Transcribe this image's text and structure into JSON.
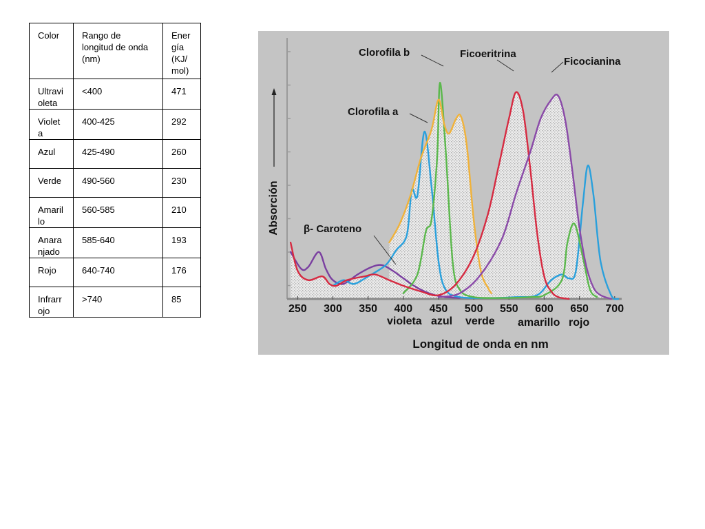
{
  "table": {
    "headers": [
      "Color",
      "Rango de\nlongitud de onda\n(nm)",
      "Ener\ngía\n(KJ/\nmol)"
    ],
    "rows": [
      [
        "Ultravi\noleta",
        "<400",
        "471"
      ],
      [
        "Violet\na",
        "400-425",
        "292"
      ],
      [
        "Azul",
        "425-490",
        "260"
      ],
      [
        "Verde",
        "490-560",
        "230"
      ],
      [
        "Amaril\nlo",
        "560-585",
        "210"
      ],
      [
        "Anara\nnjado",
        "585-640",
        "193"
      ],
      [
        "Rojo",
        "640-740",
        "176"
      ],
      [
        "Infrarr\nojo",
        ">740",
        "85"
      ]
    ]
  },
  "chart_data": {
    "type": "line",
    "title": "",
    "xlabel": "Longitud de onda en nm",
    "ylabel": "Absorción",
    "xlim": [
      235,
      710
    ],
    "ylim": [
      0,
      100
    ],
    "x_ticks": [
      "250",
      "300",
      "350",
      "400",
      "450",
      "500",
      "550",
      "600",
      "650",
      "700"
    ],
    "color_band_labels": [
      "violeta",
      "azul",
      "verde",
      "amarillo",
      "rojo"
    ],
    "grid": false,
    "series": [
      {
        "name": "β- Caroteno",
        "color": "#7a3fa0",
        "points": [
          [
            240,
            25
          ],
          [
            255,
            16
          ],
          [
            265,
            17
          ],
          [
            280,
            25
          ],
          [
            290,
            16
          ],
          [
            300,
            10
          ],
          [
            315,
            8
          ],
          [
            335,
            13
          ],
          [
            355,
            17
          ],
          [
            370,
            18
          ],
          [
            385,
            15
          ],
          [
            400,
            11
          ],
          [
            415,
            7
          ],
          [
            430,
            4
          ],
          [
            445,
            2
          ],
          [
            460,
            1
          ],
          [
            480,
            0.5
          ]
        ]
      },
      {
        "name": "Clorofila a",
        "color": "#2aa0dc",
        "points": [
          [
            300,
            7
          ],
          [
            315,
            10
          ],
          [
            330,
            8
          ],
          [
            350,
            12
          ],
          [
            375,
            18
          ],
          [
            390,
            26
          ],
          [
            405,
            34
          ],
          [
            412,
            58
          ],
          [
            420,
            55
          ],
          [
            430,
            89
          ],
          [
            440,
            60
          ],
          [
            450,
            20
          ],
          [
            460,
            5
          ],
          [
            480,
            1
          ],
          [
            520,
            0.5
          ],
          [
            560,
            1
          ],
          [
            590,
            2
          ],
          [
            610,
            10
          ],
          [
            625,
            13
          ],
          [
            635,
            11
          ],
          [
            645,
            15
          ],
          [
            655,
            51
          ],
          [
            662,
            71
          ],
          [
            670,
            55
          ],
          [
            680,
            20
          ],
          [
            695,
            2
          ],
          [
            705,
            0
          ]
        ]
      },
      {
        "name": "Clorofila b",
        "color": "#5bb84c",
        "points": [
          [
            400,
            3
          ],
          [
            420,
            13
          ],
          [
            432,
            36
          ],
          [
            440,
            42
          ],
          [
            448,
            75
          ],
          [
            452,
            115
          ],
          [
            460,
            80
          ],
          [
            470,
            20
          ],
          [
            480,
            5
          ],
          [
            500,
            1
          ],
          [
            540,
            0.5
          ],
          [
            580,
            1
          ],
          [
            600,
            2
          ],
          [
            625,
            10
          ],
          [
            633,
            30
          ],
          [
            643,
            40
          ],
          [
            655,
            22
          ],
          [
            665,
            5
          ],
          [
            675,
            1
          ]
        ]
      },
      {
        "name": "",
        "color": "#f0b23a",
        "points": [
          [
            380,
            30
          ],
          [
            395,
            40
          ],
          [
            410,
            55
          ],
          [
            425,
            75
          ],
          [
            440,
            90
          ],
          [
            450,
            106
          ],
          [
            458,
            93
          ],
          [
            465,
            88
          ],
          [
            475,
            96
          ],
          [
            482,
            97
          ],
          [
            490,
            82
          ],
          [
            500,
            42
          ],
          [
            510,
            15
          ],
          [
            520,
            6
          ],
          [
            525,
            3
          ]
        ]
      },
      {
        "name": "Ficoeritrina",
        "color": "#d62a41",
        "points": [
          [
            240,
            30
          ],
          [
            250,
            15
          ],
          [
            265,
            10
          ],
          [
            285,
            12
          ],
          [
            295,
            8
          ],
          [
            305,
            7
          ],
          [
            320,
            10
          ],
          [
            345,
            12
          ],
          [
            360,
            13
          ],
          [
            380,
            10
          ],
          [
            400,
            7
          ],
          [
            425,
            4
          ],
          [
            450,
            2
          ],
          [
            475,
            8
          ],
          [
            500,
            23
          ],
          [
            520,
            45
          ],
          [
            535,
            70
          ],
          [
            550,
            96
          ],
          [
            560,
            110
          ],
          [
            570,
            100
          ],
          [
            580,
            70
          ],
          [
            590,
            35
          ],
          [
            600,
            12
          ],
          [
            610,
            4
          ],
          [
            620,
            1
          ],
          [
            635,
            0
          ]
        ]
      },
      {
        "name": "Ficocianina",
        "color": "#8a4aa8",
        "points": [
          [
            450,
            1
          ],
          [
            480,
            3
          ],
          [
            510,
            13
          ],
          [
            540,
            32
          ],
          [
            560,
            56
          ],
          [
            580,
            78
          ],
          [
            595,
            96
          ],
          [
            610,
            106
          ],
          [
            620,
            108
          ],
          [
            630,
            95
          ],
          [
            640,
            68
          ],
          [
            650,
            38
          ],
          [
            660,
            17
          ],
          [
            670,
            6
          ],
          [
            680,
            2
          ],
          [
            695,
            0
          ]
        ]
      }
    ]
  }
}
